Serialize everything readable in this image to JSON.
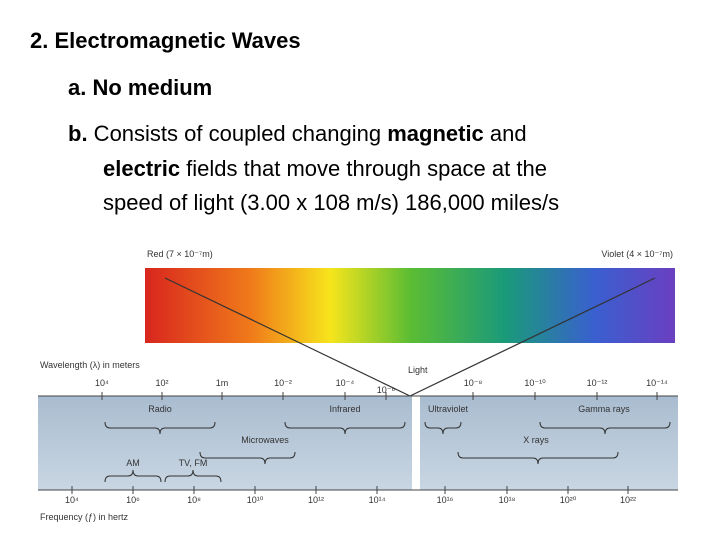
{
  "heading": "2. Electromagnetic Waves",
  "point_a": "a. No medium",
  "point_b": {
    "lines": [
      [
        {
          "text": "b.",
          "bold": true
        },
        {
          "text": " Consists of coupled changing ",
          "bold": false
        },
        {
          "text": "magnetic",
          "bold": true
        },
        {
          "text": " and",
          "bold": false
        }
      ],
      [
        {
          "text": "electric",
          "bold": true
        },
        {
          "text": " fields that move through space at the",
          "bold": false
        }
      ],
      [
        {
          "text": "speed of light (3.00 x 108 m/s) 186,000 miles/s",
          "bold": false
        }
      ]
    ]
  },
  "diagram": {
    "red_label": "Red (7 × 10⁻⁷m)",
    "violet_label": "Violet (4 × 10⁻⁷m)",
    "light_label": "Light",
    "wavelength_title": "Wavelength (λ) in meters",
    "wavelength_ticks": [
      "10⁴",
      "10²",
      "1m",
      "10⁻²",
      "10⁻⁴",
      "10⁻⁶",
      "10⁻⁸",
      "10⁻¹⁰",
      "10⁻¹²",
      "10⁻¹⁴"
    ],
    "frequency_title": "Frequency (ƒ) in hertz",
    "frequency_ticks": [
      "10⁴",
      "10⁶",
      "10⁸",
      "10¹⁰",
      "10¹²",
      "10¹⁴",
      "10¹⁶",
      "10¹⁸",
      "10²⁰",
      "10²²"
    ],
    "regions": [
      "Radio",
      "Infrared",
      "Microwaves",
      "AM",
      "TV, FM",
      "Ultraviolet",
      "Gamma rays",
      "X rays"
    ]
  }
}
